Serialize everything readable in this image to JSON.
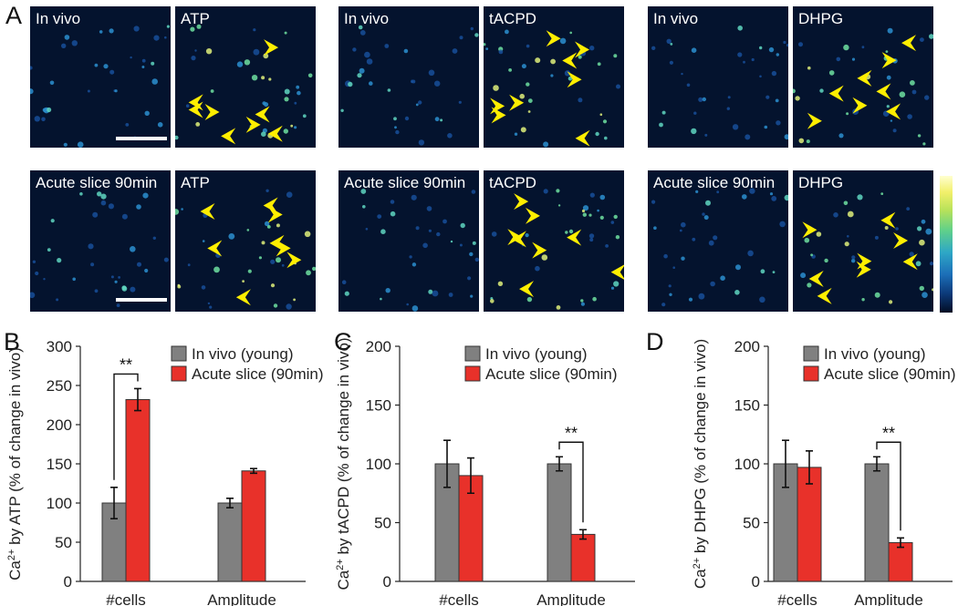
{
  "panel_letters": {
    "A": "A",
    "B": "B",
    "C": "C",
    "D": "D"
  },
  "colors": {
    "in_vivo": "#808080",
    "acute_slice": "#e8312a",
    "arrowhead": "#ffee00",
    "image_bg": "#04132e"
  },
  "images": {
    "rows": [
      {
        "row": "in-vivo",
        "pairs": [
          {
            "baseline": "In vivo",
            "stimulus": "ATP",
            "scale_bar": true
          },
          {
            "baseline": "In vivo",
            "stimulus": "tACPD",
            "scale_bar": false
          },
          {
            "baseline": "In vivo",
            "stimulus": "DHPG",
            "scale_bar": false
          }
        ]
      },
      {
        "row": "acute-slice",
        "pairs": [
          {
            "baseline": "Acute slice 90min",
            "stimulus": "ATP",
            "scale_bar": true
          },
          {
            "baseline": "Acute slice 90min",
            "stimulus": "tACPD",
            "scale_bar": false
          },
          {
            "baseline": "Acute slice 90min",
            "stimulus": "DHPG",
            "scale_bar": false
          }
        ]
      }
    ],
    "colorbar": "intensity colormap (dark blue to light yellow)"
  },
  "chart_data": [
    {
      "type": "bar",
      "panel": "B",
      "categories": [
        "#cells",
        "Amplitude"
      ],
      "series": [
        {
          "name": "In vivo (young)",
          "values": [
            100,
            100
          ],
          "errors": [
            20,
            6
          ]
        },
        {
          "name": "Acute slice (90min)",
          "values": [
            232,
            141
          ],
          "errors": [
            14,
            3
          ]
        }
      ],
      "ylabel_pre": "Ca",
      "ylabel_sup": "2+",
      "ylabel_post": " by ATP (% of change in vivo)",
      "ylim": [
        0,
        300
      ],
      "yticks": [
        0,
        50,
        100,
        150,
        200,
        250,
        300
      ],
      "tick_labels": [
        "0",
        "50",
        "100",
        "150",
        "200",
        "250",
        "300"
      ],
      "significance": {
        "label": "**",
        "category": "#cells"
      },
      "legend": "top-right",
      "grid": false
    },
    {
      "type": "bar",
      "panel": "C",
      "categories": [
        "#cells",
        "Amplitude"
      ],
      "series": [
        {
          "name": "In vivo (young)",
          "values": [
            100,
            100
          ],
          "errors": [
            20,
            6
          ]
        },
        {
          "name": "Acute slice (90min)",
          "values": [
            90,
            40
          ],
          "errors": [
            15,
            4
          ]
        }
      ],
      "ylabel_pre": "Ca",
      "ylabel_sup": "2+",
      "ylabel_post": " by tACPD (% of change in vivo)",
      "ylim": [
        0,
        200
      ],
      "yticks": [
        0,
        50,
        100,
        150,
        200
      ],
      "tick_labels": [
        "0",
        "50",
        "100",
        "150",
        "200"
      ],
      "significance": {
        "label": "**",
        "category": "Amplitude"
      },
      "legend": "top-right",
      "grid": false
    },
    {
      "type": "bar",
      "panel": "D",
      "categories": [
        "#cells",
        "Amplitude"
      ],
      "series": [
        {
          "name": "In vivo (young)",
          "values": [
            100,
            100
          ],
          "errors": [
            20,
            6
          ]
        },
        {
          "name": "Acute slice (90min)",
          "values": [
            97,
            33
          ],
          "errors": [
            14,
            4
          ]
        }
      ],
      "ylabel_pre": "Ca",
      "ylabel_sup": "2+",
      "ylabel_post": " by DHPG (% of change in vivo)",
      "ylim": [
        0,
        200
      ],
      "yticks": [
        0,
        50,
        100,
        150,
        200
      ],
      "tick_labels": [
        "0",
        "50",
        "100",
        "150",
        "200"
      ],
      "significance": {
        "label": "**",
        "category": "Amplitude"
      },
      "legend": "top-right",
      "grid": false
    }
  ]
}
